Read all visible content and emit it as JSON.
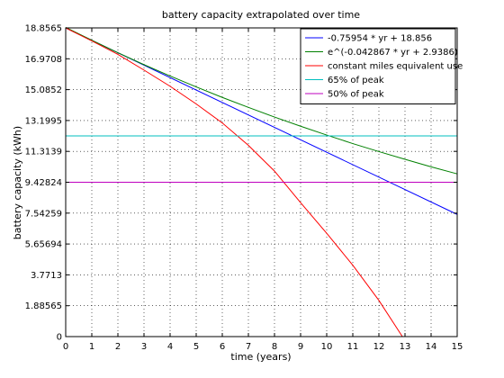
{
  "chart_data": {
    "type": "line",
    "title": "battery capacity extrapolated over time",
    "xlabel": "time (years)",
    "ylabel": "battery capacity (kWh)",
    "xlim": [
      0,
      15
    ],
    "ylim": [
      0,
      18.8565
    ],
    "xticks": [
      0,
      1,
      2,
      3,
      4,
      5,
      6,
      7,
      8,
      9,
      10,
      11,
      12,
      13,
      14,
      15
    ],
    "yticks": [
      0,
      1.88565,
      3.7713,
      5.65694,
      7.54259,
      9.42824,
      11.3139,
      13.1995,
      15.0852,
      16.9708,
      18.8565
    ],
    "ytick_labels": [
      "0",
      "1.88565",
      "3.7713",
      "5.65694",
      "7.54259",
      "9.42824",
      "11.3139",
      "13.1995",
      "15.0852",
      "16.9708",
      "18.8565"
    ],
    "grid": true,
    "legend_position": "top-right",
    "series": [
      {
        "name": "-0.75954 * yr + 18.856",
        "color": "#0000ff",
        "x": [
          0,
          15
        ],
        "y": [
          18.856,
          7.463
        ]
      },
      {
        "name": "e^(-0.042867 * yr + 2.9386)",
        "color": "#008000",
        "x": [
          0,
          1,
          2,
          3,
          4,
          5,
          6,
          7,
          8,
          9,
          10,
          11,
          12,
          13,
          14,
          15
        ],
        "y": [
          18.89,
          18.1,
          17.34,
          16.61,
          15.92,
          15.25,
          14.61,
          14.0,
          13.41,
          12.85,
          12.31,
          11.79,
          11.3,
          10.83,
          10.37,
          9.94
        ]
      },
      {
        "name": "constant miles equivalent use",
        "color": "#ff0000",
        "x": [
          0,
          1,
          2,
          3,
          4,
          5,
          6,
          7,
          8,
          9,
          10,
          11,
          12,
          12.9
        ],
        "y": [
          18.856,
          18.06,
          17.24,
          16.28,
          15.29,
          14.21,
          13.05,
          11.68,
          10.11,
          8.18,
          6.31,
          4.36,
          2.21,
          0
        ]
      },
      {
        "name": "65% of peak",
        "color": "#00bfbf",
        "x": [
          0,
          15
        ],
        "y": [
          12.2567,
          12.2567
        ]
      },
      {
        "name": "50% of peak",
        "color": "#bf00bf",
        "x": [
          0,
          15
        ],
        "y": [
          9.42824,
          9.42824
        ]
      }
    ]
  }
}
